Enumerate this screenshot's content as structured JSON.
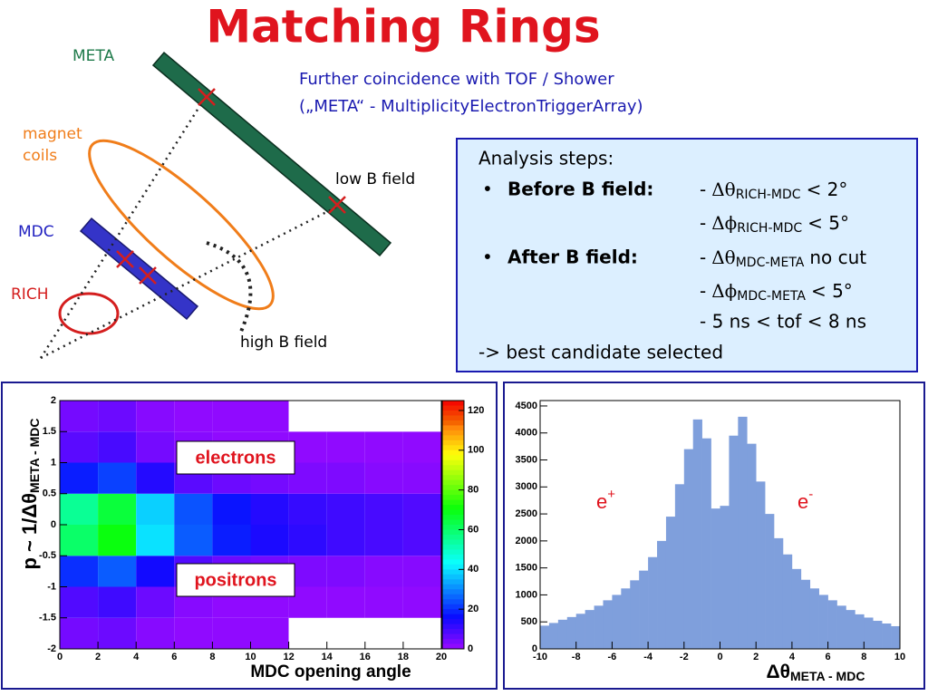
{
  "title": "Matching Rings",
  "diagram": {
    "meta": "META",
    "magnet": [
      "magnet",
      "coils"
    ],
    "mdc": "MDC",
    "rich": "RICH",
    "low_field": "low B field",
    "high_field": "high B field"
  },
  "note": [
    "Further coincidence with TOF / Shower",
    "(„META“ - MultiplicityElectronTriggerArray)"
  ],
  "analysis": {
    "heading": "Analysis steps:",
    "bullet": "•",
    "before": "Before B field:",
    "after": "After  B field:",
    "conditions": [
      {
        "prefix": "-",
        "symbol": "Δθ",
        "sub": "RICH-MDC",
        "text": "< 2°"
      },
      {
        "prefix": "-",
        "symbol": "Δϕ",
        "sub": "RICH-MDC",
        "text": "< 5°"
      },
      {
        "prefix": "-",
        "symbol": "Δθ",
        "sub": "MDC-META",
        "text": "no cut"
      },
      {
        "prefix": "-",
        "symbol": "Δϕ",
        "sub": "MDC-META",
        "text": "< 5°"
      }
    ],
    "tof": "- 5 ns < tof < 8 ns",
    "result": "-> best candidate selected"
  },
  "chart_data": [
    {
      "type": "heatmap",
      "xlabel": "MDC opening angle",
      "ylabel": {
        "text": "p ~ 1/Δθ",
        "sub": "META - MDC"
      },
      "annotations": [
        "electrons",
        "positrons"
      ],
      "xbins": [
        0,
        2,
        4,
        6,
        8,
        10,
        12,
        14,
        16,
        18,
        20
      ],
      "ybins": [
        -2,
        -1.5,
        -1,
        -0.5,
        0,
        0.5,
        1,
        1.5,
        2
      ],
      "values": [
        [
          4,
          5,
          2,
          1,
          1,
          1,
          0,
          0,
          0,
          0
        ],
        [
          8,
          10,
          5,
          2,
          1,
          1,
          1,
          1,
          1,
          1
        ],
        [
          20,
          25,
          15,
          8,
          5,
          4,
          3,
          3,
          2,
          2
        ],
        [
          60,
          70,
          40,
          25,
          18,
          14,
          12,
          10,
          9,
          8
        ],
        [
          55,
          65,
          38,
          24,
          17,
          13,
          11,
          10,
          9,
          8
        ],
        [
          18,
          22,
          13,
          7,
          5,
          4,
          3,
          3,
          2,
          2
        ],
        [
          7,
          9,
          4,
          2,
          1,
          1,
          1,
          1,
          1,
          1
        ],
        [
          4,
          5,
          2,
          1,
          1,
          1,
          0,
          0,
          0,
          0
        ]
      ],
      "xlim": [
        0,
        20
      ],
      "xticks": [
        0,
        2,
        4,
        6,
        8,
        10,
        12,
        14,
        16,
        18,
        20
      ],
      "ylim": [
        -2,
        2
      ],
      "yticks": [
        -2,
        -1.5,
        -1,
        -0.5,
        0,
        0.5,
        1,
        1.5,
        2
      ],
      "zlim": [
        0,
        125
      ],
      "zticks": [
        0,
        20,
        40,
        60,
        80,
        100,
        120
      ]
    },
    {
      "type": "histogram",
      "xlabel": {
        "text": "Δθ",
        "sub": "META - MDC"
      },
      "annotations": [
        {
          "text": "e",
          "sup": "+"
        },
        {
          "text": "e",
          "sup": "-"
        }
      ],
      "color": "#7f9fdc",
      "bins": [
        -10,
        -9.5,
        -9,
        -8.5,
        -8,
        -7.5,
        -7,
        -6.5,
        -6,
        -5.5,
        -5,
        -4.5,
        -4,
        -3.5,
        -3,
        -2.5,
        -2,
        -1.5,
        -1,
        -0.5,
        0,
        0.5,
        1,
        1.5,
        2,
        2.5,
        3,
        3.5,
        4,
        4.5,
        5,
        5.5,
        6,
        6.5,
        7,
        7.5,
        8,
        8.5,
        9,
        9.5,
        10
      ],
      "values": [
        430,
        480,
        540,
        590,
        650,
        720,
        800,
        900,
        1000,
        1120,
        1270,
        1450,
        1700,
        2000,
        2450,
        3050,
        3700,
        4250,
        3900,
        2600,
        2650,
        3950,
        4300,
        3800,
        3100,
        2500,
        2050,
        1750,
        1480,
        1280,
        1120,
        1000,
        900,
        800,
        720,
        640,
        580,
        520,
        470,
        420
      ],
      "xlim": [
        -10,
        10
      ],
      "xticks": [
        -10,
        -8,
        -6,
        -4,
        -2,
        0,
        2,
        4,
        6,
        8,
        10
      ],
      "ylim": [
        0,
        4600
      ],
      "yticks": [
        0,
        500,
        1000,
        1500,
        2000,
        2500,
        3000,
        3500,
        4000,
        4500
      ]
    }
  ]
}
